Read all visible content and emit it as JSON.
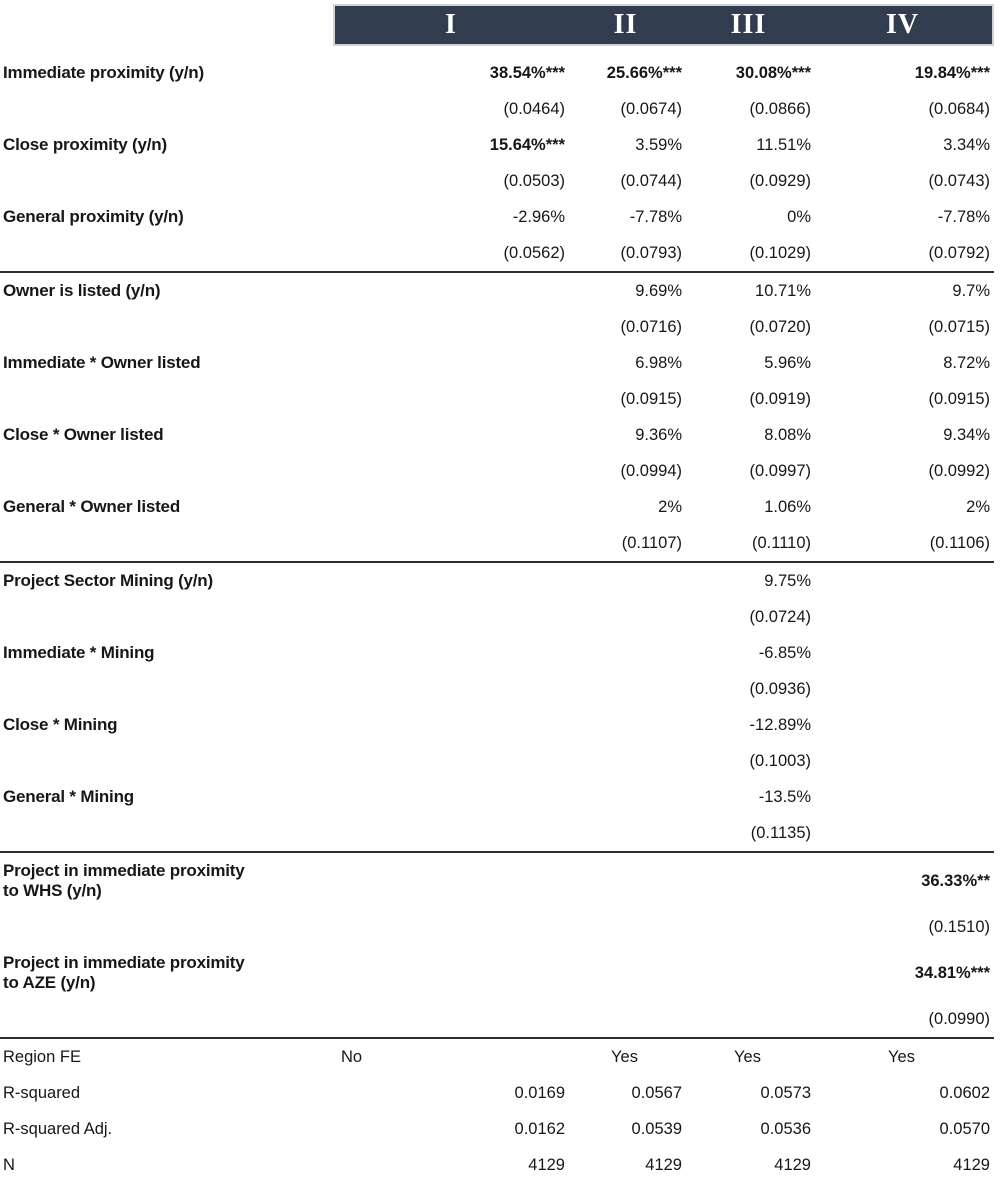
{
  "theme": {
    "band_bg": "#313d4f",
    "band_border": "#cdd2db",
    "rule": "#2e2e2e",
    "text": "#171717"
  },
  "header": {
    "columns": [
      "I",
      "II",
      "III",
      "IV"
    ]
  },
  "table": {
    "rows": [
      {
        "kind": "coef",
        "label": "Immediate proximity (y/n)",
        "cells": [
          "38.54%***",
          "25.66%***",
          "30.08%***",
          "19.84%***"
        ],
        "bold": [
          true,
          true,
          true,
          true
        ]
      },
      {
        "kind": "se",
        "cells": [
          "(0.0464)",
          "(0.0674)",
          "(0.0866)",
          "(0.0684)"
        ]
      },
      {
        "kind": "coef",
        "label": "Close proximity (y/n)",
        "cells": [
          "15.64%***",
          "3.59%",
          "11.51%",
          "3.34%"
        ],
        "bold": [
          true,
          false,
          false,
          false
        ]
      },
      {
        "kind": "se",
        "cells": [
          "(0.0503)",
          "(0.0744)",
          "(0.0929)",
          "(0.0743)"
        ]
      },
      {
        "kind": "coef",
        "label": "General proximity (y/n)",
        "cells": [
          "-2.96%",
          "-7.78%",
          "0%",
          "-7.78%"
        ]
      },
      {
        "kind": "se",
        "cells": [
          "(0.0562)",
          "(0.0793)",
          "(0.1029)",
          "(0.0792)"
        ]
      },
      {
        "kind": "coef",
        "label": "Owner is listed (y/n)",
        "sep": true,
        "cells": [
          "",
          "9.69%",
          "10.71%",
          "9.7%"
        ]
      },
      {
        "kind": "se",
        "cells": [
          "",
          "(0.0716)",
          "(0.0720)",
          "(0.0715)"
        ]
      },
      {
        "kind": "coef",
        "label": "Immediate * Owner listed",
        "cells": [
          "",
          "6.98%",
          "5.96%",
          "8.72%"
        ]
      },
      {
        "kind": "se",
        "cells": [
          "",
          "(0.0915)",
          "(0.0919)",
          "(0.0915)"
        ]
      },
      {
        "kind": "coef",
        "label": "Close * Owner listed",
        "cells": [
          "",
          "9.36%",
          "8.08%",
          "9.34%"
        ]
      },
      {
        "kind": "se",
        "cells": [
          "",
          "(0.0994)",
          "(0.0997)",
          "(0.0992)"
        ]
      },
      {
        "kind": "coef",
        "label": "General * Owner listed",
        "cells": [
          "",
          "2%",
          "1.06%",
          "2%"
        ]
      },
      {
        "kind": "se",
        "cells": [
          "",
          "(0.1107)",
          "(0.1110)",
          "(0.1106)"
        ]
      },
      {
        "kind": "coef",
        "label": "Project Sector Mining (y/n)",
        "sep": true,
        "cells": [
          "",
          "",
          "9.75%",
          ""
        ]
      },
      {
        "kind": "se",
        "cells": [
          "",
          "",
          "(0.0724)",
          ""
        ]
      },
      {
        "kind": "coef",
        "label": "Immediate * Mining",
        "cells": [
          "",
          "",
          "-6.85%",
          ""
        ]
      },
      {
        "kind": "se",
        "cells": [
          "",
          "",
          "(0.0936)",
          ""
        ]
      },
      {
        "kind": "coef",
        "label": "Close * Mining",
        "cells": [
          "",
          "",
          "-12.89%",
          ""
        ]
      },
      {
        "kind": "se",
        "cells": [
          "",
          "",
          "(0.1003)",
          ""
        ]
      },
      {
        "kind": "coef",
        "label": "General * Mining",
        "cells": [
          "",
          "",
          "-13.5%",
          ""
        ]
      },
      {
        "kind": "se",
        "cells": [
          "",
          "",
          "(0.1135)",
          ""
        ]
      },
      {
        "kind": "coef2",
        "label": "Project in immediate proximity\nto WHS (y/n)",
        "sep": true,
        "cells": [
          "",
          "",
          "",
          "36.33%**"
        ],
        "bold": [
          false,
          false,
          false,
          true
        ]
      },
      {
        "kind": "se",
        "cells": [
          "",
          "",
          "",
          "(0.1510)"
        ]
      },
      {
        "kind": "coef2",
        "label": "Project in immediate proximity\nto AZE (y/n)",
        "cells": [
          "",
          "",
          "",
          "34.81%***"
        ],
        "bold": [
          false,
          false,
          false,
          true
        ]
      },
      {
        "kind": "se",
        "cells": [
          "",
          "",
          "",
          "(0.0990)"
        ]
      },
      {
        "kind": "fe",
        "label": "Region FE",
        "sep": true,
        "cells": [
          "No",
          "Yes",
          "Yes",
          "Yes"
        ]
      },
      {
        "kind": "stat",
        "label": "R-squared",
        "cells": [
          "0.0169",
          "0.0567",
          "0.0573",
          "0.0602"
        ]
      },
      {
        "kind": "stat",
        "label": "R-squared Adj.",
        "cells": [
          "0.0162",
          "0.0539",
          "0.0536",
          "0.0570"
        ]
      },
      {
        "kind": "stat",
        "label": "N",
        "cells": [
          "4129",
          "4129",
          "4129",
          "4129"
        ]
      }
    ]
  }
}
